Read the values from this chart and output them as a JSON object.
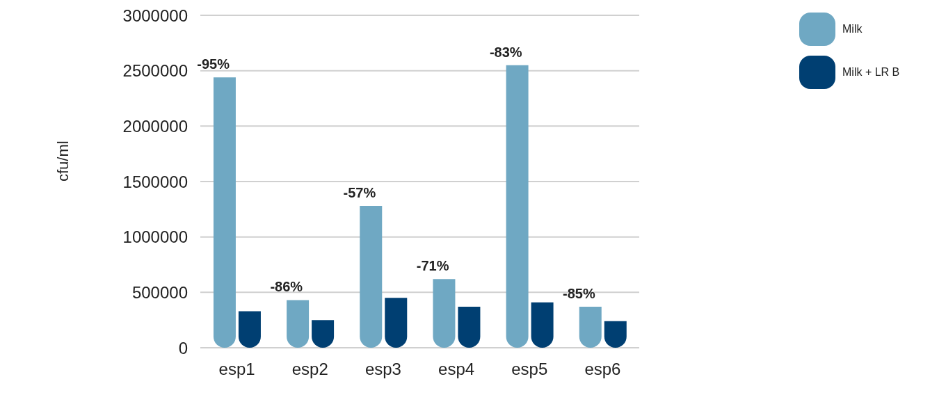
{
  "chart_data": {
    "type": "bar",
    "ylabel": "cfu/ml",
    "categories": [
      "esp1",
      "esp2",
      "esp3",
      "esp4",
      "esp5",
      "esp6"
    ],
    "series": [
      {
        "name": "Milk",
        "color": "#6fa8c3",
        "values": [
          2440000,
          430000,
          1280000,
          620000,
          2550000,
          370000
        ]
      },
      {
        "name": "Milk + LR B",
        "color": "#003f72",
        "values": [
          330000,
          250000,
          450000,
          370000,
          410000,
          240000
        ]
      }
    ],
    "ylim": [
      0,
      3000000
    ],
    "yticks": [
      0,
      500000,
      1000000,
      1500000,
      2000000,
      2500000,
      3000000
    ],
    "grid": "y",
    "legend": "top right",
    "annotations": [
      {
        "text": "-95%",
        "x": "esp1",
        "y": 2440000
      },
      {
        "text": "-86%",
        "x": "esp2",
        "y": 430000
      },
      {
        "text": "-57%",
        "x": "esp3",
        "y": 1280000
      },
      {
        "text": "-71%",
        "x": "esp4",
        "y": 620000
      },
      {
        "text": "-83%",
        "x": "esp5",
        "y": 2550000
      },
      {
        "text": "-85%",
        "x": "esp6",
        "y": 370000
      }
    ]
  }
}
